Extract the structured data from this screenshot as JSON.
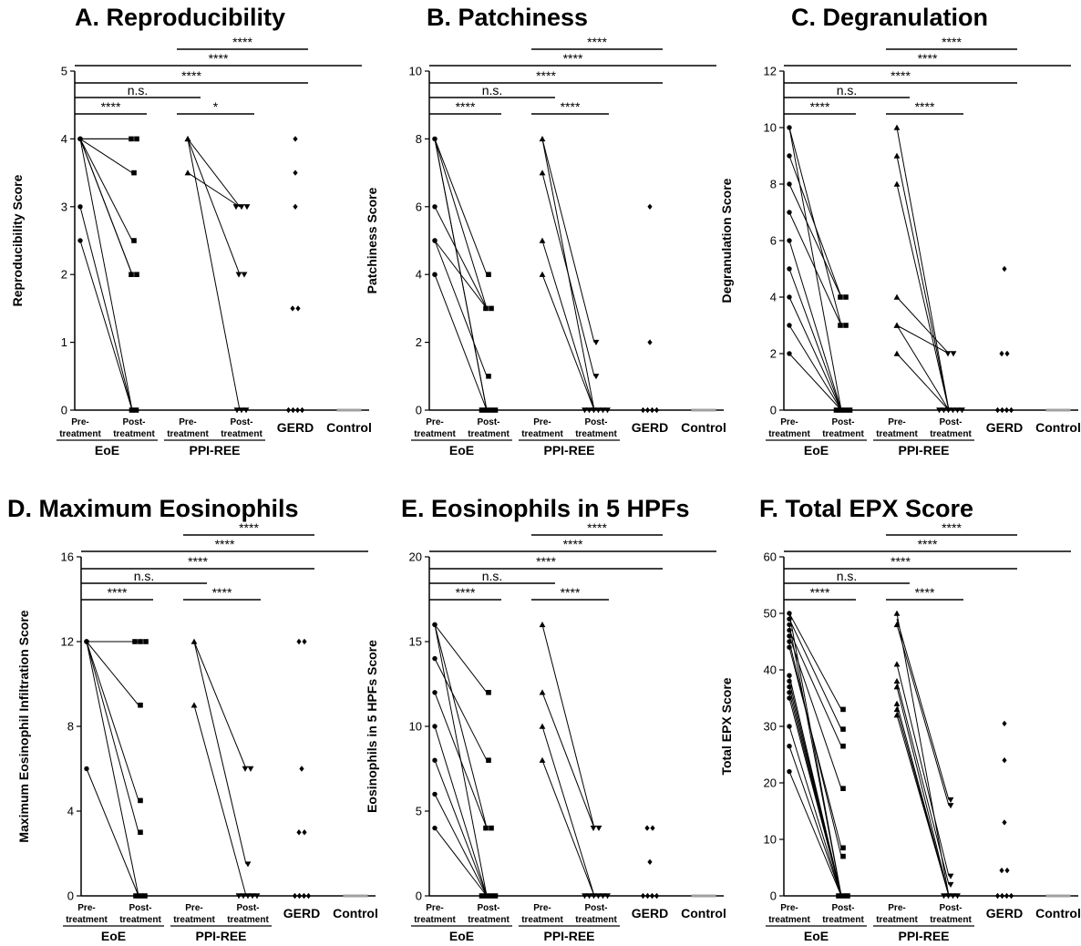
{
  "chart_data": [
    {
      "type": "scatter",
      "title": "A. Reproducibility",
      "ylabel": "Reproducibility Score",
      "ylim": [
        0,
        5
      ],
      "yticks": [
        "0",
        "1",
        "2",
        "3",
        "4",
        "5"
      ],
      "categories": [
        "Pre-treatment",
        "Post-treatment",
        "Pre-treatment",
        "Post-treatment",
        "GERD",
        "Control"
      ],
      "groups": [
        "EoE",
        "PPI-REE"
      ],
      "significance": [
        {
          "from": 2,
          "to": 4,
          "label": "****"
        },
        {
          "from": 0,
          "to": 5,
          "label": "****"
        },
        {
          "from": 0,
          "to": 4,
          "label": "****"
        },
        {
          "from": 0,
          "to": 2,
          "label": "n.s."
        },
        {
          "from": 0,
          "to": 1,
          "label": "****"
        },
        {
          "from": 2,
          "to": 3,
          "label": "*"
        }
      ],
      "series": [
        {
          "values": [
            [
              4,
              4,
              4,
              4,
              4,
              4,
              3,
              2.5
            ],
            [
              4,
              4,
              3.5,
              2.5,
              2,
              2,
              0,
              0
            ],
            [
              4,
              4,
              3.5
            ],
            [
              3,
              3,
              3,
              2,
              2,
              0,
              0,
              0
            ],
            [
              4,
              3.5,
              3,
              1.5,
              1.5,
              0,
              0,
              0,
              0
            ],
            [
              0,
              0,
              0,
              0,
              0
            ]
          ]
        }
      ],
      "pairs": {
        "eoe": [
          [
            4,
            4
          ],
          [
            4,
            4
          ],
          [
            4,
            3.5
          ],
          [
            4,
            2.5
          ],
          [
            4,
            2
          ],
          [
            4,
            2
          ],
          [
            3,
            0
          ],
          [
            2.5,
            0
          ],
          [
            4,
            0
          ]
        ],
        "ppi": [
          [
            4,
            3
          ],
          [
            3.5,
            3
          ],
          [
            4,
            2
          ],
          [
            4,
            0
          ]
        ]
      }
    },
    {
      "type": "scatter",
      "title": "B. Patchiness",
      "ylabel": "Patchiness Score",
      "ylim": [
        0,
        10
      ],
      "yticks": [
        "0",
        "2",
        "4",
        "6",
        "8",
        "10"
      ],
      "categories": [
        "Pre-treatment",
        "Post-treatment",
        "Pre-treatment",
        "Post-treatment",
        "GERD",
        "Control"
      ],
      "groups": [
        "EoE",
        "PPI-REE"
      ],
      "significance": [
        {
          "from": 2,
          "to": 4,
          "label": "****"
        },
        {
          "from": 0,
          "to": 5,
          "label": "****"
        },
        {
          "from": 0,
          "to": 4,
          "label": "****"
        },
        {
          "from": 0,
          "to": 2,
          "label": "n.s."
        },
        {
          "from": 0,
          "to": 1,
          "label": "****"
        },
        {
          "from": 2,
          "to": 3,
          "label": "****"
        }
      ],
      "series": [
        {
          "values": [
            [
              8,
              8,
              6,
              5,
              5,
              4,
              4
            ],
            [
              4,
              3,
              3,
              1,
              0,
              0,
              0,
              0
            ],
            [
              8,
              7,
              5,
              4
            ],
            [
              2,
              1,
              0,
              0,
              0,
              0,
              0,
              0
            ],
            [
              6,
              2,
              0,
              0,
              0,
              0
            ],
            [
              0,
              0,
              0,
              0,
              0
            ]
          ]
        }
      ],
      "pairs": {
        "eoe": [
          [
            8,
            4
          ],
          [
            8,
            3
          ],
          [
            6,
            3
          ],
          [
            5,
            3
          ],
          [
            5,
            1
          ],
          [
            4,
            0
          ],
          [
            8,
            0
          ],
          [
            8,
            0
          ]
        ],
        "ppi": [
          [
            8,
            2
          ],
          [
            7,
            1
          ],
          [
            5,
            0
          ],
          [
            4,
            0
          ],
          [
            8,
            0
          ]
        ]
      }
    },
    {
      "type": "scatter",
      "title": "C. Degranulation",
      "ylabel": "Degranulation  Score",
      "ylim": [
        0,
        12
      ],
      "yticks": [
        "0",
        "2",
        "4",
        "6",
        "8",
        "10",
        "12"
      ],
      "categories": [
        "Pre-treatment",
        "Post-treatment",
        "Pre-treatment",
        "Post-treatment",
        "GERD",
        "Control"
      ],
      "groups": [
        "EoE",
        "PPI-REE"
      ],
      "significance": [
        {
          "from": 2,
          "to": 4,
          "label": "****"
        },
        {
          "from": 0,
          "to": 5,
          "label": "****"
        },
        {
          "from": 0,
          "to": 4,
          "label": "****"
        },
        {
          "from": 0,
          "to": 2,
          "label": "n.s."
        },
        {
          "from": 0,
          "to": 1,
          "label": "****"
        },
        {
          "from": 2,
          "to": 3,
          "label": "****"
        }
      ],
      "series": [
        {
          "values": [
            [
              10,
              9,
              8,
              7,
              6,
              5,
              4,
              3,
              2
            ],
            [
              4,
              4,
              3,
              3,
              0,
              0,
              0,
              0
            ],
            [
              10,
              9,
              8,
              4,
              3,
              3,
              2
            ],
            [
              2,
              2,
              0,
              0,
              0,
              0,
              0,
              0
            ],
            [
              5,
              2,
              2,
              0,
              0,
              0,
              0
            ],
            [
              0,
              0,
              0,
              0,
              0
            ]
          ]
        }
      ],
      "pairs": {
        "eoe": [
          [
            9,
            4
          ],
          [
            8,
            4
          ],
          [
            10,
            3
          ],
          [
            7,
            3
          ],
          [
            6,
            0
          ],
          [
            5,
            0
          ],
          [
            4,
            0
          ],
          [
            3,
            0
          ],
          [
            2,
            0
          ],
          [
            10,
            0
          ]
        ],
        "ppi": [
          [
            3,
            2
          ],
          [
            4,
            2
          ],
          [
            10,
            0
          ],
          [
            9,
            0
          ],
          [
            8,
            0
          ],
          [
            3,
            0
          ],
          [
            2,
            0
          ]
        ]
      }
    },
    {
      "type": "scatter",
      "title": "D. Maximum Eosinophils",
      "ylabel": "Maximum Eosinophil Infiltration Score",
      "ylim": [
        0,
        16
      ],
      "yticks": [
        "0",
        "4",
        "8",
        "12",
        "16"
      ],
      "categories": [
        "Pre-treatment",
        "Post-treatment",
        "Pre-treatment",
        "Post-treatment",
        "GERD",
        "Control"
      ],
      "groups": [
        "EoE",
        "PPI-REE"
      ],
      "significance": [
        {
          "from": 2,
          "to": 4,
          "label": "****"
        },
        {
          "from": 0,
          "to": 5,
          "label": "****"
        },
        {
          "from": 0,
          "to": 4,
          "label": "****"
        },
        {
          "from": 0,
          "to": 2,
          "label": "n.s."
        },
        {
          "from": 0,
          "to": 1,
          "label": "****"
        },
        {
          "from": 2,
          "to": 3,
          "label": "****"
        }
      ],
      "series": [
        {
          "values": [
            [
              12,
              12,
              12,
              12,
              12,
              6
            ],
            [
              12,
              12,
              12,
              9,
              4.5,
              3,
              0,
              0,
              0
            ],
            [
              12,
              9
            ],
            [
              6,
              6,
              1.5,
              0,
              0,
              0,
              0,
              0
            ],
            [
              12,
              12,
              6,
              3,
              3,
              0,
              0,
              0,
              0
            ],
            [
              0,
              0,
              0,
              0,
              0
            ]
          ]
        }
      ],
      "pairs": {
        "eoe": [
          [
            12,
            12
          ],
          [
            12,
            9
          ],
          [
            12,
            4.5
          ],
          [
            12,
            3
          ],
          [
            12,
            0
          ],
          [
            6,
            0
          ]
        ],
        "ppi": [
          [
            12,
            6
          ],
          [
            12,
            1.5
          ],
          [
            9,
            0
          ]
        ]
      }
    },
    {
      "type": "scatter",
      "title": "E. Eosinophils in 5 HPFs",
      "ylabel": "Eosinophils in 5 HPFs Score",
      "ylim": [
        0,
        20
      ],
      "yticks": [
        "0",
        "5",
        "10",
        "15",
        "20"
      ],
      "categories": [
        "Pre-treatment",
        "Post-treatment",
        "Pre-treatment",
        "Post-treatment",
        "GERD",
        "Control"
      ],
      "groups": [
        "EoE",
        "PPI-REE"
      ],
      "significance": [
        {
          "from": 2,
          "to": 4,
          "label": "****"
        },
        {
          "from": 0,
          "to": 5,
          "label": "****"
        },
        {
          "from": 0,
          "to": 4,
          "label": "****"
        },
        {
          "from": 0,
          "to": 2,
          "label": "n.s."
        },
        {
          "from": 0,
          "to": 1,
          "label": "****"
        },
        {
          "from": 2,
          "to": 3,
          "label": "****"
        }
      ],
      "series": [
        {
          "values": [
            [
              16,
              16,
              14,
              12,
              10,
              8,
              6,
              4
            ],
            [
              12,
              8,
              4,
              4,
              0,
              0,
              0,
              0
            ],
            [
              16,
              12,
              10,
              8
            ],
            [
              4,
              4,
              0,
              0,
              0,
              0,
              0,
              0
            ],
            [
              4,
              4,
              2,
              0,
              0,
              0,
              0
            ],
            [
              0,
              0,
              0,
              0,
              0
            ]
          ]
        }
      ],
      "pairs": {
        "eoe": [
          [
            16,
            12
          ],
          [
            14,
            8
          ],
          [
            16,
            4
          ],
          [
            12,
            4
          ],
          [
            10,
            0
          ],
          [
            8,
            0
          ],
          [
            6,
            0
          ],
          [
            4,
            0
          ],
          [
            16,
            0
          ]
        ],
        "ppi": [
          [
            16,
            4
          ],
          [
            12,
            4
          ],
          [
            10,
            0
          ],
          [
            8,
            0
          ]
        ]
      }
    },
    {
      "type": "scatter",
      "title": "F. Total EPX Score",
      "ylabel": "Total EPX Score",
      "ylim": [
        0,
        60
      ],
      "yticks": [
        "0",
        "10",
        "20",
        "30",
        "40",
        "50",
        "60"
      ],
      "categories": [
        "Pre-treatment",
        "Post-treatment",
        "Pre-treatment",
        "Post-treatment",
        "GERD",
        "Control"
      ],
      "groups": [
        "EoE",
        "PPI-REE"
      ],
      "significance": [
        {
          "from": 2,
          "to": 4,
          "label": "****"
        },
        {
          "from": 0,
          "to": 5,
          "label": "****"
        },
        {
          "from": 0,
          "to": 4,
          "label": "****"
        },
        {
          "from": 0,
          "to": 2,
          "label": "n.s."
        },
        {
          "from": 0,
          "to": 1,
          "label": "****"
        },
        {
          "from": 2,
          "to": 3,
          "label": "****"
        }
      ],
      "series": [
        {
          "values": [
            [
              50,
              49,
              48,
              47,
              46,
              45,
              44,
              39,
              38,
              37,
              36,
              35,
              30,
              26.5,
              22
            ],
            [
              33,
              29.5,
              26.5,
              19,
              8.5,
              7,
              0,
              0,
              0
            ],
            [
              50,
              48,
              41,
              38,
              37,
              34,
              33,
              32
            ],
            [
              17,
              16,
              3.5,
              2,
              0,
              0,
              0,
              0
            ],
            [
              30.5,
              24,
              13,
              4.5,
              4.5,
              0,
              0,
              0,
              0
            ],
            [
              0,
              0,
              0,
              0,
              0
            ]
          ]
        }
      ],
      "pairs": {
        "eoe": [
          [
            50,
            33
          ],
          [
            49,
            29.5
          ],
          [
            47,
            26.5
          ],
          [
            46,
            19
          ],
          [
            44,
            8.5
          ],
          [
            45,
            7
          ],
          [
            48,
            0
          ],
          [
            39,
            0
          ],
          [
            38,
            0
          ],
          [
            37,
            0
          ],
          [
            36,
            0
          ],
          [
            35,
            0
          ],
          [
            30,
            0
          ],
          [
            26.5,
            0
          ],
          [
            22,
            0
          ],
          [
            50,
            0
          ]
        ],
        "ppi": [
          [
            49,
            17
          ],
          [
            48,
            16
          ],
          [
            41,
            3.5
          ],
          [
            38,
            2
          ],
          [
            37,
            0
          ],
          [
            34,
            0
          ],
          [
            33,
            0
          ],
          [
            32,
            0
          ],
          [
            50,
            0
          ]
        ]
      }
    }
  ],
  "colors": {
    "axis": "#000000",
    "control": "#a0a0a0"
  }
}
